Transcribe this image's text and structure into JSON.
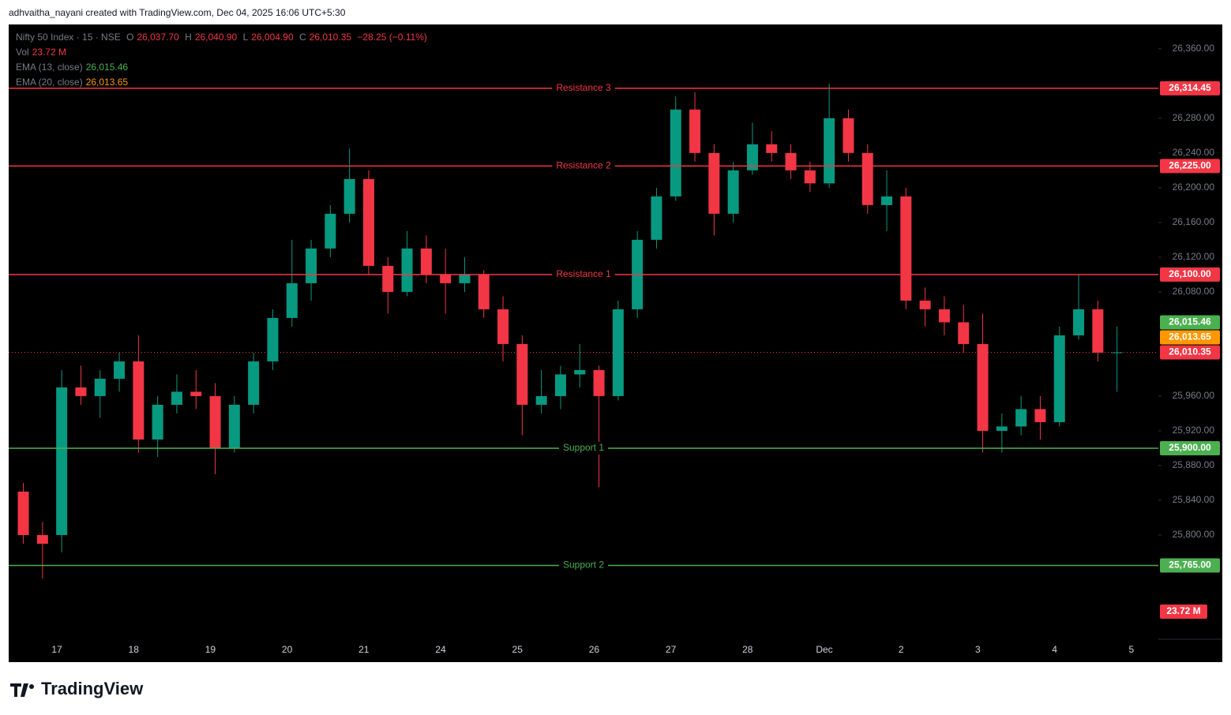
{
  "attribution": "adhvaitha_nayani created with TradingView.com, Dec 04, 2025 16:06 UTC+5:30",
  "brand": "TradingView",
  "chart_data": {
    "type": "candlestick",
    "title": "Nifty 50 Index · 15 · NSE",
    "header": {
      "open": {
        "name": "O",
        "value": 26037.7,
        "label": "26,037.70"
      },
      "high": {
        "name": "H",
        "value": 26040.9,
        "label": "26,040.90"
      },
      "low": {
        "name": "L",
        "value": 26004.9,
        "label": "26,004.90"
      },
      "close": {
        "name": "C",
        "value": 26010.35,
        "label": "26,010.35"
      },
      "change": "−28.25 (−0.11%)"
    },
    "volume": {
      "name": "Vol",
      "value": 23720000,
      "label": "23.72 M"
    },
    "indicators": [
      {
        "name": "EMA (13, close)",
        "value": 26015.46,
        "label": "26,015.46",
        "color": "#4caf50"
      },
      {
        "name": "EMA (20, close)",
        "value": 26013.65,
        "label": "26,013.65",
        "color": "#ff9800"
      }
    ],
    "last_price": {
      "value": 26010.35,
      "label": "26,010.35",
      "color": "#f23645"
    },
    "up_color": "#089981",
    "down_color": "#f23645",
    "categories": [
      null,
      null,
      "17",
      null,
      null,
      null,
      "18",
      null,
      null,
      null,
      "19",
      null,
      null,
      null,
      "20",
      null,
      null,
      null,
      "21",
      null,
      null,
      null,
      "24",
      null,
      null,
      null,
      "25",
      null,
      null,
      null,
      "26",
      null,
      null,
      null,
      "27",
      null,
      null,
      null,
      "28",
      null,
      null,
      null,
      "Dec",
      null,
      null,
      null,
      "2",
      null,
      null,
      null,
      "3",
      null,
      null,
      null,
      "4",
      null,
      null,
      null,
      "5"
    ],
    "open": [
      25850,
      25800,
      25800,
      25970,
      25960,
      25980,
      26000,
      25910,
      25950,
      25965,
      25960,
      25900,
      25950,
      26000,
      26050,
      26090,
      26130,
      26170,
      26210,
      26110,
      26080,
      26130,
      26100,
      26090,
      26100,
      26060,
      26020,
      25950,
      25960,
      25985,
      25990,
      25960,
      26060,
      26140,
      26190,
      26290,
      26240,
      26170,
      26220,
      26250,
      26240,
      26220,
      26205,
      26280,
      26240,
      26180,
      26190,
      26070,
      26060,
      26045,
      26020,
      25920,
      25925,
      25945,
      25930,
      26030,
      26060,
      26010,
      null
    ],
    "high": [
      25860,
      25815,
      25990,
      25995,
      25990,
      26010,
      26030,
      25960,
      25985,
      25990,
      25975,
      25960,
      26010,
      26060,
      26140,
      26140,
      26180,
      26245,
      26220,
      26120,
      26150,
      26145,
      26130,
      26120,
      26105,
      26075,
      26030,
      25990,
      25995,
      26020,
      25995,
      26070,
      26150,
      26200,
      26305,
      26310,
      26250,
      26230,
      26275,
      26265,
      26250,
      26230,
      26320,
      26290,
      26250,
      26220,
      26200,
      26085,
      26075,
      26065,
      26055,
      25940,
      25960,
      25960,
      26040,
      26100,
      26070,
      26040,
      null
    ],
    "low": [
      25790,
      25750,
      25780,
      25950,
      25935,
      25965,
      25895,
      25890,
      25940,
      25945,
      25870,
      25895,
      25940,
      25990,
      26040,
      26070,
      26120,
      26160,
      26100,
      26055,
      26075,
      26090,
      26055,
      26080,
      26050,
      26000,
      25915,
      25940,
      25945,
      25970,
      25855,
      25955,
      26050,
      26130,
      26185,
      26230,
      26145,
      26160,
      26215,
      26230,
      26210,
      26195,
      26200,
      26230,
      26170,
      26150,
      26060,
      26040,
      26030,
      26010,
      25895,
      25895,
      25915,
      25910,
      25925,
      26025,
      26000,
      25965,
      null
    ],
    "close": [
      25800,
      25790,
      25970,
      25960,
      25980,
      26000,
      25910,
      25950,
      25965,
      25960,
      25900,
      25950,
      26000,
      26050,
      26090,
      26130,
      26170,
      26210,
      26110,
      26080,
      26130,
      26100,
      26090,
      26100,
      26060,
      26020,
      25950,
      25960,
      25985,
      25990,
      25960,
      26060,
      26140,
      26190,
      26290,
      26240,
      26170,
      26220,
      26250,
      26240,
      26220,
      26205,
      26280,
      26240,
      26180,
      26190,
      26070,
      26060,
      26045,
      26020,
      25920,
      25925,
      25945,
      25930,
      26030,
      26060,
      26010,
      26010.35,
      null
    ],
    "levels": [
      {
        "name": "Resistance 3",
        "value": 26314.45,
        "label": "26,314.45",
        "color": "#f23645"
      },
      {
        "name": "Resistance 2",
        "value": 26225.0,
        "label": "26,225.00",
        "color": "#f23645"
      },
      {
        "name": "Resistance 1",
        "value": 26100.0,
        "label": "26,100.00",
        "color": "#f23645"
      },
      {
        "name": "Support 1",
        "value": 25900.0,
        "label": "25,900.00",
        "color": "#4caf50"
      },
      {
        "name": "Support 2",
        "value": 25765.0,
        "label": "25,765.00",
        "color": "#4caf50"
      }
    ],
    "ylim": [
      25680,
      26388
    ],
    "yticks": [
      {
        "value": 25800,
        "label": "25,800.00"
      },
      {
        "value": 25840,
        "label": "25,840.00"
      },
      {
        "value": 25880,
        "label": "25,880.00"
      },
      {
        "value": 25920,
        "label": "25,920.00"
      },
      {
        "value": 25960,
        "label": "25,960.00"
      },
      {
        "value": 26080,
        "label": "26,080.00"
      },
      {
        "value": 26120,
        "label": "26,120.00"
      },
      {
        "value": 26160,
        "label": "26,160.00"
      },
      {
        "value": 26200,
        "label": "26,200.00"
      },
      {
        "value": 26240,
        "label": "26,240.00"
      },
      {
        "value": 26280,
        "label": "26,280.00"
      },
      {
        "value": 26360,
        "label": "26,360.00"
      }
    ]
  }
}
